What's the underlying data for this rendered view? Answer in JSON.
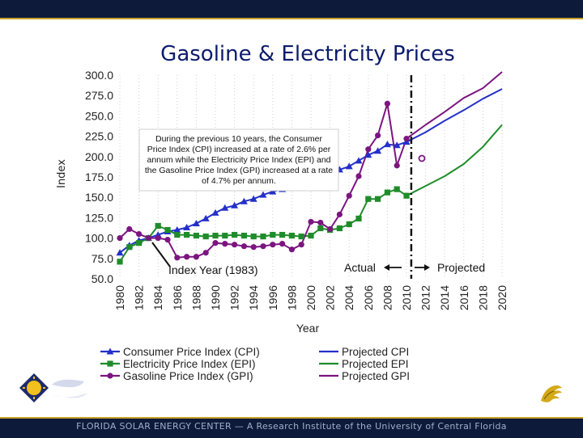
{
  "slide": {
    "title": "Gasoline & Electricity Prices",
    "footer": "FLORIDA SOLAR ENERGY CENTER — A Research Institute of the University of Central Florida"
  },
  "chart_data": {
    "type": "line",
    "title": "",
    "xlabel": "Year",
    "ylabel": "Index",
    "ylim": [
      50,
      300
    ],
    "xlim": [
      1980,
      2020
    ],
    "y_ticks": [
      "50.0",
      "75.0",
      "100.0",
      "125.0",
      "150.0",
      "175.0",
      "200.0",
      "225.0",
      "250.0",
      "275.0",
      "300.0"
    ],
    "x_ticks": [
      "1980",
      "1982",
      "1984",
      "1986",
      "1988",
      "1990",
      "1992",
      "1994",
      "1996",
      "1998",
      "2000",
      "2002",
      "2004",
      "2006",
      "2008",
      "2010",
      "2012",
      "2014",
      "2016",
      "2018",
      "2020"
    ],
    "series": [
      {
        "name": "Consumer Price Index (CPI)",
        "color": "#2430c8",
        "marker": "triangle",
        "x": [
          1980,
          1981,
          1982,
          1983,
          1984,
          1985,
          1986,
          1987,
          1988,
          1989,
          1990,
          1991,
          1992,
          1993,
          1994,
          1995,
          1996,
          1997,
          1998,
          1999,
          2000,
          2001,
          2002,
          2003,
          2004,
          2005,
          2006,
          2007,
          2008,
          2009,
          2010
        ],
        "y": [
          82,
          91,
          97,
          100,
          104,
          108,
          110,
          113,
          118,
          124,
          131,
          137,
          140,
          145,
          148,
          153,
          157,
          160,
          163,
          166,
          172,
          178,
          180,
          184,
          188,
          195,
          202,
          207,
          215,
          214,
          218
        ]
      },
      {
        "name": "Electricity Price Index (EPI)",
        "color": "#1f8c2a",
        "marker": "square",
        "x": [
          1980,
          1981,
          1982,
          1983,
          1984,
          1985,
          1986,
          1987,
          1988,
          1989,
          1990,
          1991,
          1992,
          1993,
          1994,
          1995,
          1996,
          1997,
          1998,
          1999,
          2000,
          2001,
          2002,
          2003,
          2004,
          2005,
          2006,
          2007,
          2008,
          2009,
          2010
        ],
        "y": [
          71,
          89,
          94,
          100,
          115,
          110,
          104,
          104,
          103,
          102,
          103,
          103,
          104,
          103,
          102,
          102,
          104,
          104,
          103,
          102,
          103,
          112,
          110,
          112,
          117,
          124,
          148,
          148,
          156,
          160,
          152
        ]
      },
      {
        "name": "Gasoline Price Index (GPI)",
        "color": "#7b1580",
        "marker": "circle",
        "x": [
          1980,
          1981,
          1982,
          1983,
          1984,
          1985,
          1986,
          1987,
          1988,
          1989,
          1990,
          1991,
          1992,
          1993,
          1994,
          1995,
          1996,
          1997,
          1998,
          1999,
          2000,
          2001,
          2002,
          2003,
          2004,
          2005,
          2006,
          2007,
          2008,
          2009,
          2010
        ],
        "y": [
          100,
          111,
          105,
          100,
          100,
          98,
          76,
          77,
          77,
          82,
          94,
          93,
          92,
          90,
          89,
          90,
          92,
          93,
          86,
          92,
          120,
          119,
          111,
          129,
          152,
          176,
          209,
          226,
          265,
          189,
          222
        ]
      },
      {
        "name": "Projected CPI",
        "color": "#2430c8",
        "marker": "none",
        "x": [
          2010,
          2012,
          2014,
          2016,
          2018,
          2020
        ],
        "y": [
          218,
          230,
          244,
          257,
          271,
          283
        ]
      },
      {
        "name": "Projected EPI",
        "color": "#1f8c2a",
        "marker": "none",
        "x": [
          2010,
          2012,
          2014,
          2016,
          2018,
          2020
        ],
        "y": [
          152,
          164,
          176,
          191,
          212,
          239
        ]
      },
      {
        "name": "Projected GPI",
        "color": "#7b1580",
        "marker": "none",
        "x": [
          2010,
          2012,
          2014,
          2016,
          2018,
          2020
        ],
        "y": [
          222,
          239,
          255,
          272,
          284,
          304
        ]
      }
    ],
    "annotations": {
      "note": "During the previous 10 years, the Consumer Price Index (CPI) increased at a rate of 2.6% per annum while the Electricity Price Index (EPI) and the Gasoline Price Index (GPI) increased at a rate of 4.7% per annum.",
      "note_lines": [
        "During the previous 10 years, the Consumer",
        "Price Index (CPI) increased at a rate of 2.6% per",
        "annum while the Electricity Price Index (EPI) and",
        "the Gasoline Price Index (GPI) increased at a rate",
        "of 4.7% per annum."
      ],
      "index_year": "Index Year (1983)",
      "actual": "Actual",
      "projected": "Projected",
      "divider_year": 2010.5
    },
    "legend_placement": "bottom"
  }
}
